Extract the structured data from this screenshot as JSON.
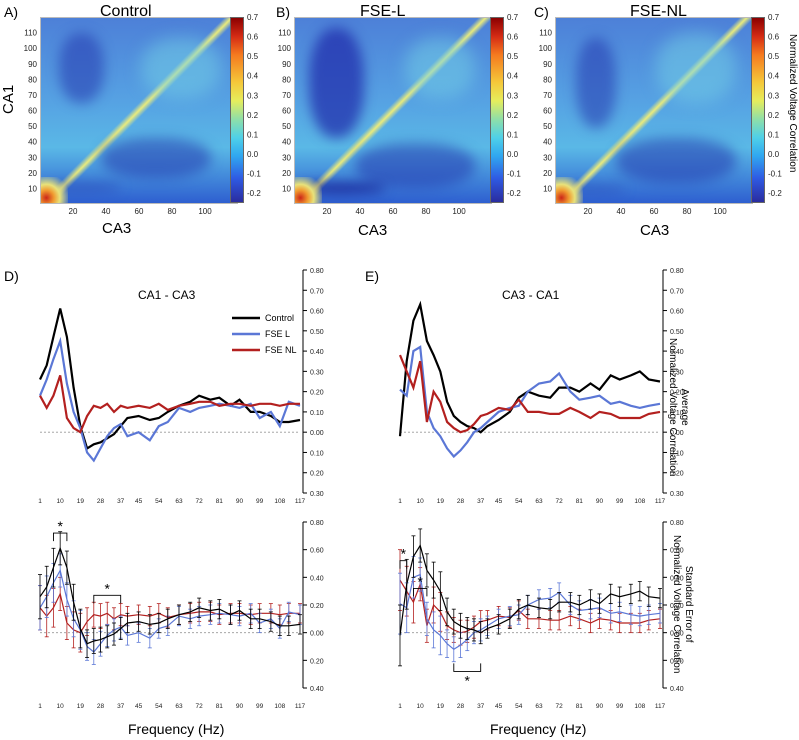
{
  "panels": {
    "A": {
      "label": "A)",
      "title": "Control"
    },
    "B": {
      "label": "B)",
      "title": "FSE-L"
    },
    "C": {
      "label": "C)",
      "title": "FSE-NL"
    },
    "D": {
      "label": "D)",
      "title": "CA1 - CA3"
    },
    "E": {
      "label": "E)",
      "title": "CA3 - CA1"
    }
  },
  "heatmap_axes": {
    "ylabel": "CA1",
    "xlabel": "CA3",
    "y_ticks": [
      "110",
      "100",
      "90",
      "80",
      "70",
      "60",
      "50",
      "40",
      "30",
      "20",
      "10"
    ],
    "x_ticks": [
      "20",
      "40",
      "60",
      "80",
      "100"
    ]
  },
  "colorbar": {
    "title": "Normalized Voltage Correlation",
    "ticks": [
      "0.7",
      "0.6",
      "0.5",
      "0.4",
      "0.3",
      "0.2",
      "0.1",
      "0.0",
      "-0.1",
      "-0.2"
    ]
  },
  "line_legend": [
    "Control",
    "FSE L",
    "FSE NL"
  ],
  "colors": {
    "Control": "#000000",
    "FSE L": "#5b77d6",
    "FSE NL": "#b3201f"
  },
  "avg_ylabel": "Average\nNormalized Voltage Correlation",
  "sem_ylabel": "Standard Error of\nNormalized Voltage Correlation",
  "x_axis_title": "Frequency (Hz)",
  "x_ticks": [
    "1",
    "10",
    "19",
    "28",
    "37",
    "45",
    "54",
    "63",
    "72",
    "81",
    "90",
    "99",
    "108",
    "117"
  ],
  "avg_y_ticks": [
    "0.80",
    "0.70",
    "0.60",
    "0.50",
    "0.40",
    "0.30",
    "0.20",
    "0.10",
    "0.00",
    "0.10",
    "0.20",
    "0.30"
  ],
  "sem_y_ticks": [
    "0.80",
    "0.60",
    "0.40",
    "0.20",
    "0.00",
    "0.20",
    "0.40"
  ],
  "sig_marker": "*",
  "chart_data": [
    {
      "type": "heatmap",
      "title": "Control",
      "xlabel": "CA3",
      "ylabel": "CA1",
      "xlim": [
        1,
        120
      ],
      "ylim": [
        1,
        120
      ],
      "zlim": [
        -0.25,
        0.7
      ],
      "colorbar_label": "Normalized Voltage Correlation"
    },
    {
      "type": "heatmap",
      "title": "FSE-L",
      "xlabel": "CA3",
      "ylabel": "CA1",
      "xlim": [
        1,
        120
      ],
      "ylim": [
        1,
        120
      ],
      "zlim": [
        -0.25,
        0.7
      ],
      "colorbar_label": "Normalized Voltage Correlation"
    },
    {
      "type": "heatmap",
      "title": "FSE-NL",
      "xlabel": "CA3",
      "ylabel": "CA1",
      "xlim": [
        1,
        120
      ],
      "ylim": [
        1,
        120
      ],
      "zlim": [
        -0.25,
        0.7
      ],
      "colorbar_label": "Normalized Voltage Correlation"
    },
    {
      "type": "line",
      "title": "CA1 - CA3",
      "xlabel": "Frequency (Hz)",
      "ylabel": "Average Normalized Voltage Correlation",
      "xlim": [
        1,
        117
      ],
      "ylim": [
        -0.3,
        0.8
      ],
      "x": [
        1,
        4,
        7,
        10,
        13,
        16,
        19,
        22,
        25,
        28,
        31,
        34,
        37,
        40,
        45,
        50,
        54,
        58,
        63,
        68,
        72,
        77,
        81,
        86,
        90,
        95,
        99,
        104,
        108,
        112,
        117
      ],
      "series": [
        {
          "name": "Control",
          "values": [
            0.26,
            0.33,
            0.47,
            0.61,
            0.47,
            0.22,
            0.03,
            -0.08,
            -0.06,
            -0.05,
            -0.03,
            -0.01,
            0.03,
            0.07,
            0.08,
            0.06,
            0.07,
            0.1,
            0.13,
            0.15,
            0.18,
            0.16,
            0.17,
            0.13,
            0.16,
            0.1,
            0.1,
            0.08,
            0.05,
            0.05,
            0.06
          ]
        },
        {
          "name": "FSE L",
          "values": [
            0.18,
            0.26,
            0.36,
            0.45,
            0.24,
            0.1,
            0.02,
            -0.1,
            -0.14,
            -0.08,
            -0.02,
            0.02,
            0.04,
            -0.02,
            0.0,
            -0.04,
            0.03,
            0.05,
            0.12,
            0.1,
            0.12,
            0.13,
            0.14,
            0.13,
            0.12,
            0.14,
            0.07,
            0.1,
            0.03,
            0.15,
            0.13
          ]
        },
        {
          "name": "FSE NL",
          "values": [
            0.18,
            0.12,
            0.18,
            0.28,
            0.07,
            0.02,
            0.0,
            0.08,
            0.13,
            0.12,
            0.14,
            0.1,
            0.13,
            0.12,
            0.13,
            0.12,
            0.14,
            0.11,
            0.13,
            0.14,
            0.15,
            0.15,
            0.13,
            0.14,
            0.14,
            0.13,
            0.14,
            0.14,
            0.13,
            0.14,
            0.14
          ]
        }
      ]
    },
    {
      "type": "line",
      "title": "CA3 - CA1",
      "xlabel": "Frequency (Hz)",
      "ylabel": "Average Normalized Voltage Correlation",
      "xlim": [
        1,
        117
      ],
      "ylim": [
        -0.3,
        0.8
      ],
      "x": [
        1,
        4,
        7,
        10,
        13,
        16,
        19,
        22,
        25,
        28,
        31,
        34,
        37,
        40,
        45,
        50,
        54,
        58,
        63,
        68,
        72,
        77,
        81,
        86,
        90,
        95,
        99,
        104,
        108,
        112,
        117
      ],
      "series": [
        {
          "name": "Control",
          "values": [
            -0.02,
            0.35,
            0.55,
            0.63,
            0.45,
            0.38,
            0.3,
            0.15,
            0.08,
            0.05,
            0.03,
            0.02,
            0.0,
            0.03,
            0.06,
            0.1,
            0.17,
            0.2,
            0.18,
            0.17,
            0.22,
            0.22,
            0.2,
            0.24,
            0.21,
            0.28,
            0.26,
            0.28,
            0.3,
            0.26,
            0.25
          ]
        },
        {
          "name": "FSE L",
          "values": [
            0.21,
            0.18,
            0.4,
            0.42,
            0.1,
            0.02,
            -0.02,
            -0.08,
            -0.12,
            -0.09,
            -0.05,
            0.0,
            0.02,
            0.05,
            0.1,
            0.12,
            0.13,
            0.2,
            0.24,
            0.25,
            0.29,
            0.2,
            0.16,
            0.17,
            0.18,
            0.14,
            0.15,
            0.13,
            0.12,
            0.13,
            0.14
          ]
        },
        {
          "name": "FSE NL",
          "values": [
            0.38,
            0.3,
            0.22,
            0.35,
            0.05,
            0.2,
            0.15,
            0.05,
            0.02,
            0.0,
            0.01,
            0.04,
            0.08,
            0.09,
            0.12,
            0.11,
            0.16,
            0.1,
            0.1,
            0.09,
            0.09,
            0.12,
            0.1,
            0.07,
            0.1,
            0.09,
            0.07,
            0.07,
            0.07,
            0.09,
            0.1
          ]
        }
      ]
    },
    {
      "type": "line",
      "title": "CA1 - CA3",
      "xlabel": "Frequency (Hz)",
      "ylabel": "Standard Error of Normalized Voltage Correlation",
      "xlim": [
        1,
        117
      ],
      "ylim": [
        -0.4,
        0.8
      ],
      "x": [
        1,
        4,
        7,
        10,
        13,
        16,
        19,
        22,
        25,
        28,
        31,
        34,
        37,
        40,
        45,
        50,
        54,
        58,
        63,
        68,
        72,
        77,
        81,
        86,
        90,
        95,
        99,
        104,
        108,
        112,
        117
      ],
      "series": [
        {
          "name": "Control",
          "values": [
            0.26,
            0.33,
            0.47,
            0.61,
            0.47,
            0.22,
            0.03,
            -0.08,
            -0.06,
            -0.05,
            -0.03,
            -0.01,
            0.03,
            0.07,
            0.08,
            0.06,
            0.07,
            0.1,
            0.13,
            0.15,
            0.18,
            0.16,
            0.17,
            0.13,
            0.16,
            0.1,
            0.1,
            0.08,
            0.05,
            0.05,
            0.06
          ]
        },
        {
          "name": "FSE L",
          "values": [
            0.18,
            0.26,
            0.36,
            0.45,
            0.24,
            0.1,
            0.02,
            -0.1,
            -0.14,
            -0.08,
            -0.02,
            0.02,
            0.04,
            -0.02,
            0.0,
            -0.04,
            0.03,
            0.05,
            0.12,
            0.1,
            0.12,
            0.13,
            0.14,
            0.13,
            0.12,
            0.14,
            0.07,
            0.1,
            0.03,
            0.15,
            0.13
          ]
        },
        {
          "name": "FSE NL",
          "values": [
            0.18,
            0.12,
            0.18,
            0.28,
            0.07,
            0.02,
            0.0,
            0.08,
            0.13,
            0.12,
            0.14,
            0.1,
            0.13,
            0.12,
            0.13,
            0.12,
            0.14,
            0.11,
            0.13,
            0.14,
            0.15,
            0.15,
            0.13,
            0.14,
            0.14,
            0.13,
            0.14,
            0.14,
            0.13,
            0.14,
            0.14
          ]
        }
      ],
      "error_bar_magnitude": [
        0.16,
        0.15,
        0.14,
        0.12,
        0.12,
        0.13,
        0.14,
        0.1,
        0.09,
        0.09,
        0.08,
        0.08,
        0.08,
        0.07,
        0.07,
        0.07,
        0.07,
        0.07,
        0.07,
        0.07,
        0.07,
        0.07,
        0.07,
        0.07,
        0.07,
        0.07,
        0.07,
        0.07,
        0.07,
        0.07,
        0.07
      ],
      "significance": [
        {
          "x": [
            7,
            13
          ],
          "label": "*"
        },
        {
          "x": [
            25,
            37
          ],
          "label": "*"
        }
      ]
    },
    {
      "type": "line",
      "title": "CA3 - CA1",
      "xlabel": "Frequency (Hz)",
      "ylabel": "Standard Error of Normalized Voltage Correlation",
      "xlim": [
        1,
        117
      ],
      "ylim": [
        -0.4,
        0.8
      ],
      "x": [
        1,
        4,
        7,
        10,
        13,
        16,
        19,
        22,
        25,
        28,
        31,
        34,
        37,
        40,
        45,
        50,
        54,
        58,
        63,
        68,
        72,
        77,
        81,
        86,
        90,
        95,
        99,
        104,
        108,
        112,
        117
      ],
      "series": [
        {
          "name": "Control",
          "values": [
            -0.02,
            0.35,
            0.55,
            0.63,
            0.45,
            0.38,
            0.3,
            0.15,
            0.08,
            0.05,
            0.03,
            0.02,
            0.0,
            0.03,
            0.06,
            0.1,
            0.17,
            0.2,
            0.18,
            0.17,
            0.22,
            0.22,
            0.2,
            0.24,
            0.21,
            0.28,
            0.26,
            0.28,
            0.3,
            0.26,
            0.25
          ]
        },
        {
          "name": "FSE L",
          "values": [
            0.21,
            0.18,
            0.4,
            0.42,
            0.1,
            0.02,
            -0.02,
            -0.08,
            -0.12,
            -0.09,
            -0.05,
            0.0,
            0.02,
            0.05,
            0.1,
            0.12,
            0.13,
            0.2,
            0.24,
            0.25,
            0.29,
            0.2,
            0.16,
            0.17,
            0.18,
            0.14,
            0.15,
            0.13,
            0.12,
            0.13,
            0.14
          ]
        },
        {
          "name": "FSE NL",
          "values": [
            0.38,
            0.3,
            0.22,
            0.35,
            0.05,
            0.2,
            0.15,
            0.05,
            0.02,
            0.0,
            0.01,
            0.04,
            0.08,
            0.09,
            0.12,
            0.11,
            0.16,
            0.1,
            0.1,
            0.09,
            0.09,
            0.12,
            0.1,
            0.07,
            0.1,
            0.09,
            0.07,
            0.07,
            0.07,
            0.09,
            0.1
          ]
        }
      ],
      "error_bar_magnitude": [
        0.22,
        0.18,
        0.15,
        0.12,
        0.12,
        0.13,
        0.14,
        0.1,
        0.09,
        0.09,
        0.08,
        0.08,
        0.08,
        0.07,
        0.07,
        0.07,
        0.07,
        0.07,
        0.07,
        0.07,
        0.07,
        0.07,
        0.07,
        0.07,
        0.07,
        0.07,
        0.07,
        0.07,
        0.07,
        0.07,
        0.07
      ],
      "significance": [
        {
          "x": [
            1,
            4
          ],
          "label": "*"
        },
        {
          "x": [
            7,
            13
          ],
          "label": "*"
        },
        {
          "x": [
            25,
            37
          ],
          "label": "*"
        }
      ]
    }
  ]
}
